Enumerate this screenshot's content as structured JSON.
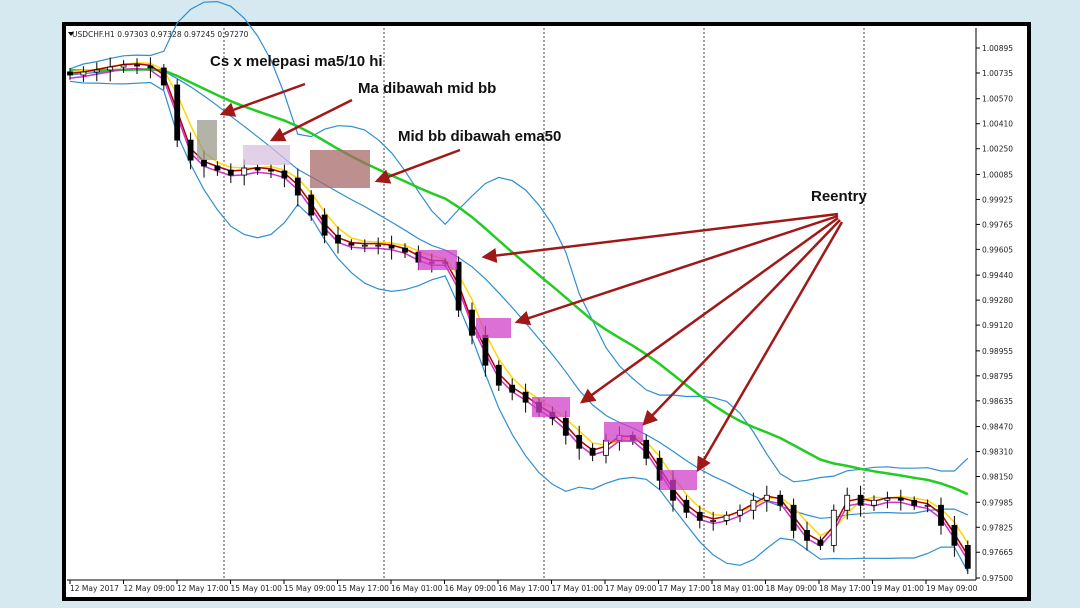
{
  "header": {
    "symbol_info": "USDCHF.H1  0.97303 0.97328 0.97245 0.97270"
  },
  "annotations": {
    "cs": "Cs x melepasi ma5/10 hi",
    "ma": "Ma dibawah mid bb",
    "midbb": "Mid bb dibawah ema50",
    "reentry": "Reentry"
  },
  "colors": {
    "background": "#d6e8f0",
    "bollinger": "#2f8fd0",
    "ema50": "#22cc22",
    "ma_yellow": "#ffd800",
    "ma_red": "#b00000",
    "ma_magenta": "#cc33cc",
    "arrow": "#c01010",
    "reentry_box": "#d040c8"
  },
  "chart_data": {
    "type": "candlestick",
    "title": "USDCHF.H1",
    "ylim": [
      0.975,
      1.00895
    ],
    "y_ticks": [
      "1.00895",
      "1.00735",
      "1.00570",
      "1.00410",
      "1.00250",
      "1.00085",
      "0.99925",
      "0.99765",
      "0.99605",
      "0.99440",
      "0.99280",
      "0.99120",
      "0.98955",
      "0.98795",
      "0.98635",
      "0.98470",
      "0.98310",
      "0.98150",
      "0.97985",
      "0.97825",
      "0.97665",
      "0.97500"
    ],
    "x_ticks": [
      "12 May 2017",
      "12 May 09:00",
      "12 May 17:00",
      "15 May 01:00",
      "15 May 09:00",
      "15 May 17:00",
      "16 May 01:00",
      "16 May 09:00",
      "16 May 17:00",
      "17 May 01:00",
      "17 May 09:00",
      "17 May 17:00",
      "18 May 01:00",
      "18 May 09:00",
      "18 May 17:00",
      "19 May 01:00",
      "19 May 09:00"
    ],
    "close": [
      1.00722,
      1.00741,
      1.00754,
      1.00773,
      1.00786,
      1.0078,
      1.00767,
      1.00658,
      1.00305,
      1.00177,
      1.00139,
      1.00113,
      1.00081,
      1.00126,
      1.00113,
      1.00107,
      1.00062,
      0.99953,
      0.99825,
      0.99696,
      0.99645,
      0.99632,
      0.99632,
      0.99632,
      0.99613,
      0.99587,
      0.99523,
      0.99523,
      0.99523,
      0.99216,
      0.99055,
      0.98863,
      0.98735,
      0.9869,
      0.98626,
      0.98562,
      0.98523,
      0.98414,
      0.98331,
      0.98286,
      0.98382,
      0.98414,
      0.98382,
      0.98267,
      0.98126,
      0.97998,
      0.97921,
      0.97869,
      0.97869,
      0.97902,
      0.97934,
      0.97998,
      0.9803,
      0.97966,
      0.97805,
      0.97741,
      0.97709,
      0.97934,
      0.9803,
      0.97966,
      0.97998,
      0.9801,
      0.97998,
      0.97966,
      0.97966,
      0.97837,
      0.97709,
      0.97562
    ],
    "indicators": [
      "Bollinger Bands",
      "EMA50",
      "MA5",
      "MA10",
      "MA"
    ],
    "grid": false
  }
}
